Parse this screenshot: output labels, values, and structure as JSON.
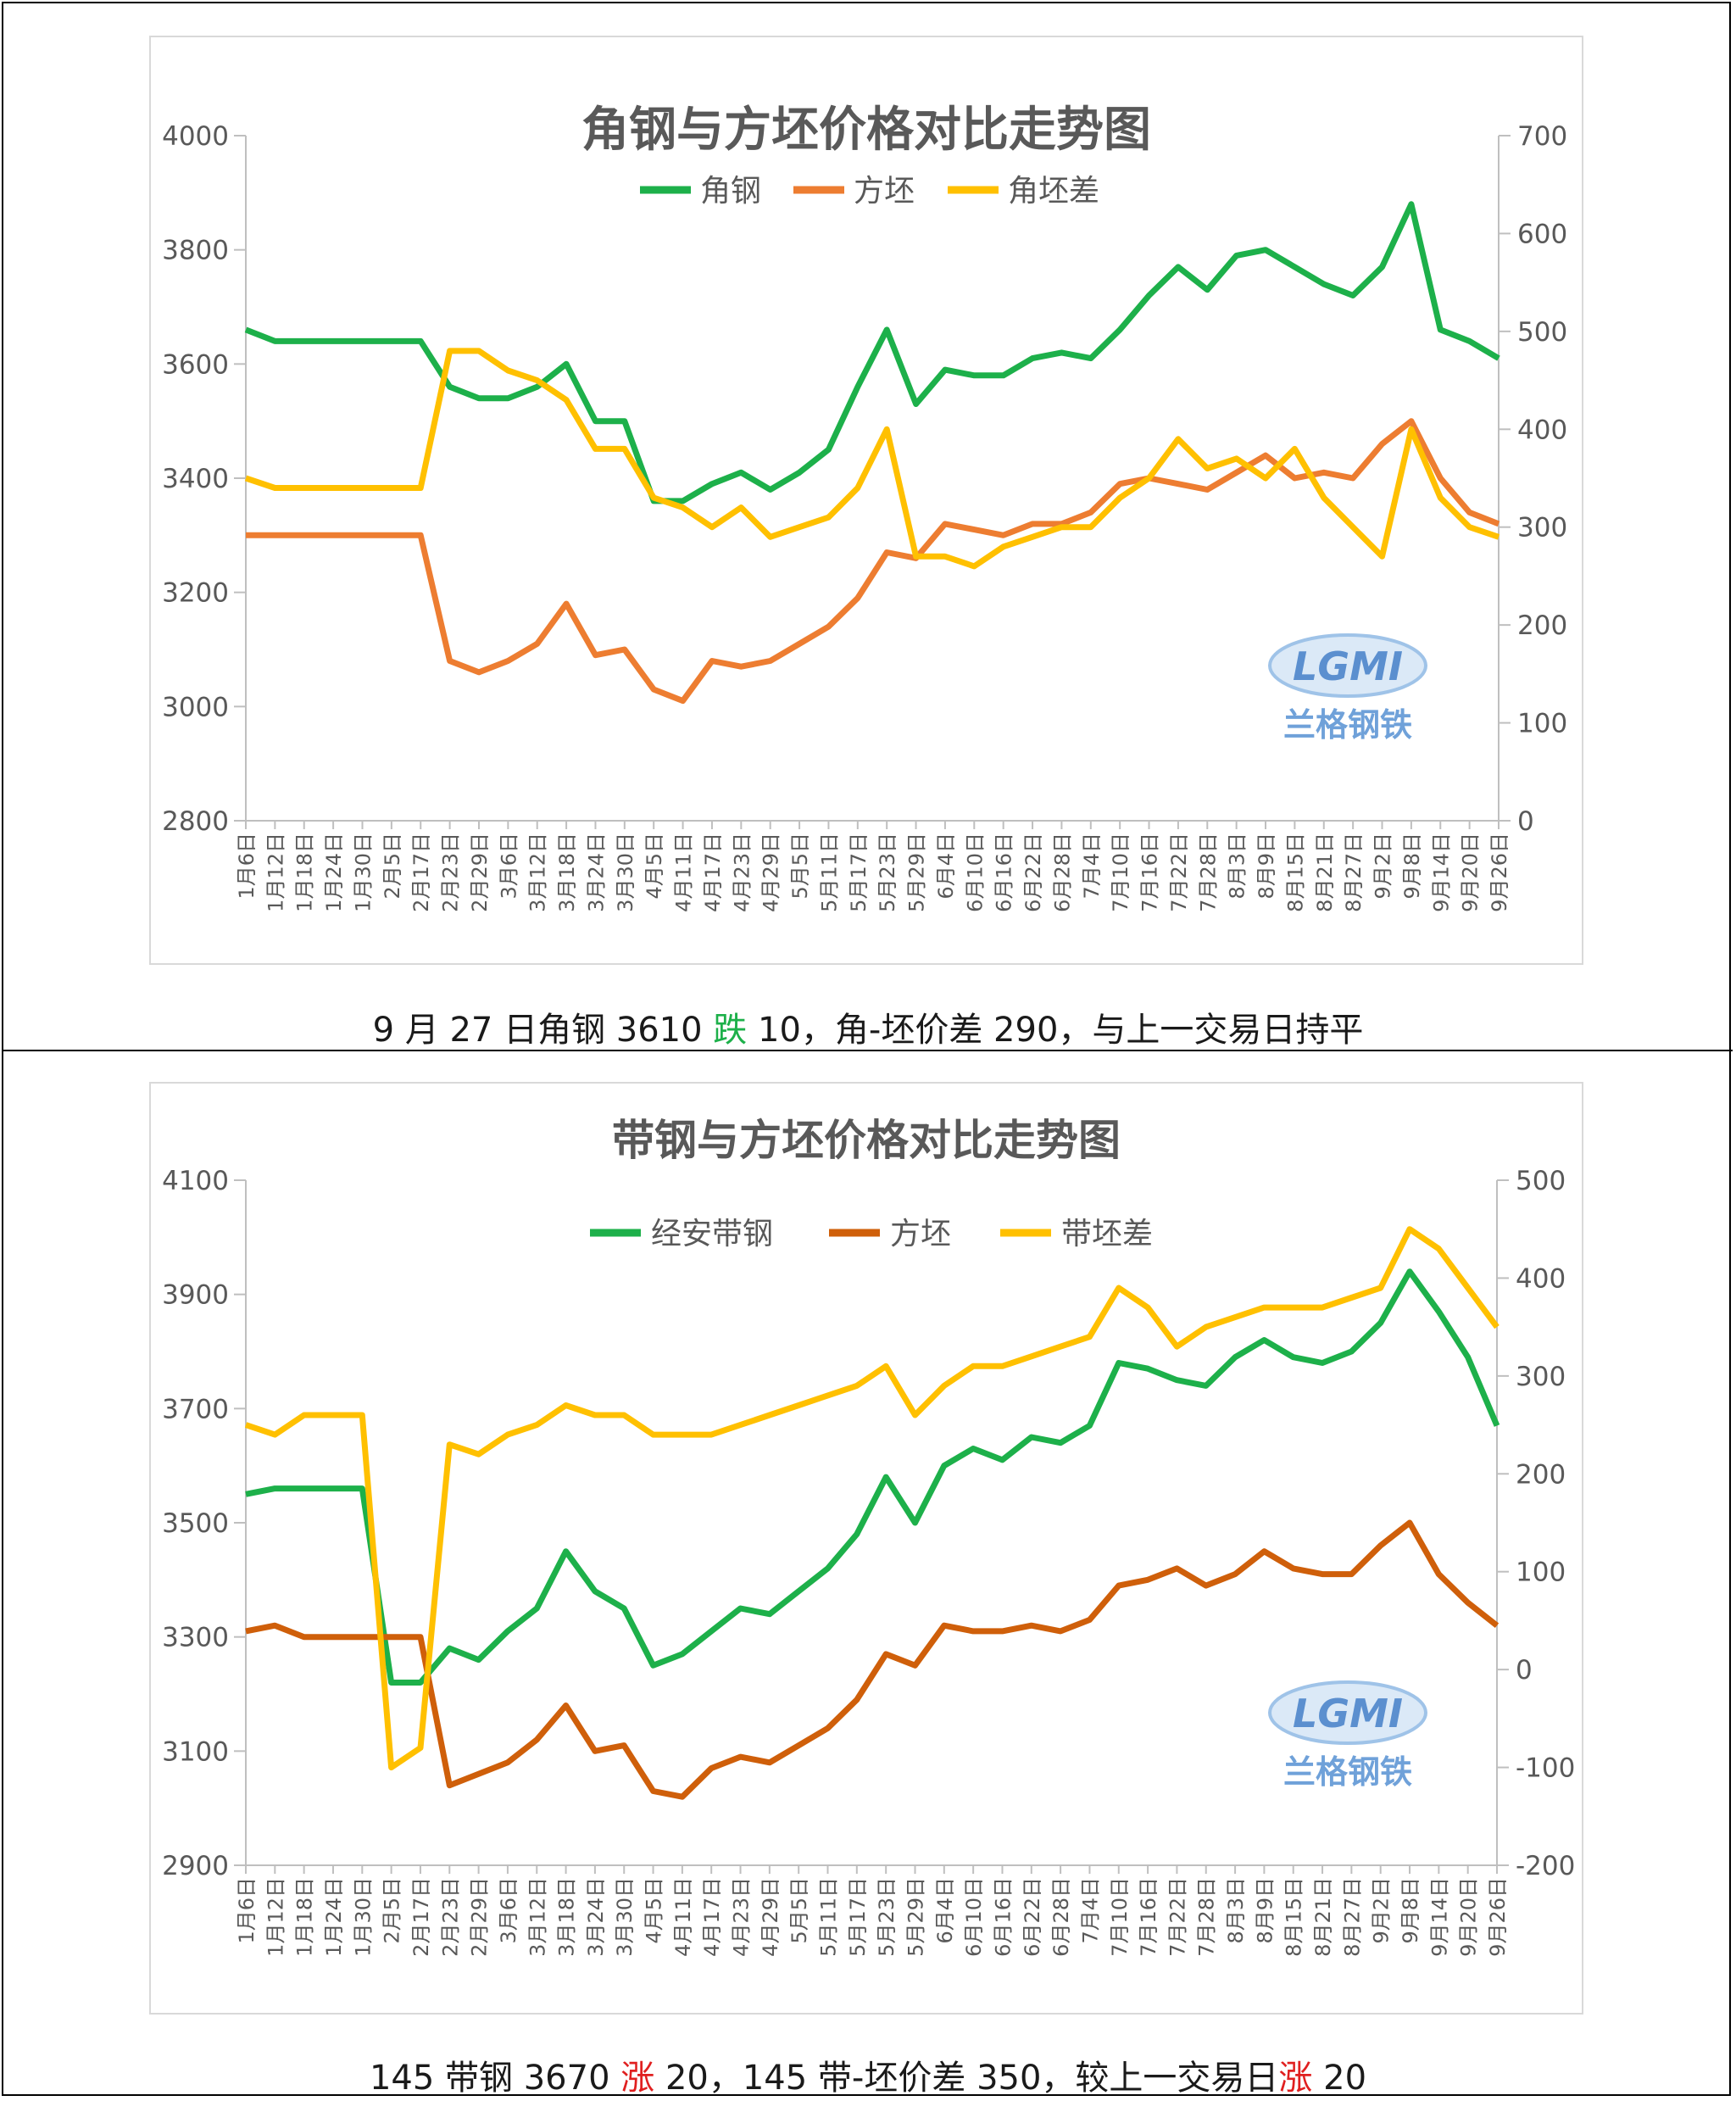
{
  "x_labels": [
    "1月6日",
    "1月12日",
    "1月18日",
    "1月24日",
    "1月30日",
    "2月5日",
    "2月17日",
    "2月23日",
    "2月29日",
    "3月6日",
    "3月12日",
    "3月18日",
    "3月24日",
    "3月30日",
    "4月5日",
    "4月11日",
    "4月17日",
    "4月23日",
    "4月29日",
    "5月5日",
    "5月11日",
    "5月17日",
    "5月23日",
    "5月29日",
    "6月4日",
    "6月10日",
    "6月16日",
    "6月22日",
    "6月28日",
    "7月4日",
    "7月10日",
    "7月16日",
    "7月22日",
    "7月28日",
    "8月3日",
    "8月9日",
    "8月15日",
    "8月21日",
    "8月27日",
    "9月2日",
    "9月8日",
    "9月14日",
    "9月20日",
    "9月26日"
  ],
  "charts": [
    {
      "title": "角钢与方坯价格对比走势图",
      "legend": [
        "角钢",
        "方坯",
        "角坯差"
      ],
      "colors": [
        "#1db04a",
        "#ed7d31",
        "#ffc000"
      ],
      "left_axis": {
        "min": 2800,
        "max": 4000,
        "step": 200,
        "ticks": [
          "4000",
          "3800",
          "3600",
          "3400",
          "3200",
          "3000",
          "2800"
        ]
      },
      "right_axis": {
        "min": 0,
        "max": 700,
        "step": 100,
        "ticks": [
          "700",
          "600",
          "500",
          "400",
          "300",
          "200",
          "100",
          "0"
        ]
      },
      "caption": {
        "prefix": "9 月 27 日角钢 3610 ",
        "change_word": "跌",
        "change_color": "#1db04a",
        "suffix": " 10，角-坯价差 290，与上一交易日持平"
      },
      "logo": {
        "text": "LGMI",
        "subtitle": "兰格钢铁"
      }
    },
    {
      "title": "带钢与方坯价格对比走势图",
      "legend": [
        "经安带钢",
        "方坯",
        "带坯差"
      ],
      "colors": [
        "#1db04a",
        "#cf5f0a",
        "#ffc000"
      ],
      "left_axis": {
        "min": 2900,
        "max": 4100,
        "step": 200,
        "ticks": [
          "4100",
          "3900",
          "3700",
          "3500",
          "3300",
          "3100",
          "2900"
        ]
      },
      "right_axis": {
        "min": -200,
        "max": 500,
        "step": 100,
        "ticks": [
          "500",
          "400",
          "300",
          "200",
          "100",
          "0",
          "-100",
          "-200"
        ]
      },
      "caption": {
        "prefix": "145 带钢 3670 ",
        "change_word": "涨",
        "change_color": "#e02020",
        "suffix": " 20，145 带-坯价差 350，较上一交易日",
        "suffix2": " 20"
      },
      "logo": {
        "text": "LGMI",
        "subtitle": "兰格钢铁"
      }
    }
  ],
  "chart_data": [
    {
      "type": "line",
      "title": "角钢与方坯价格对比走势图",
      "x": [
        "1月6日",
        "1月12日",
        "1月18日",
        "1月24日",
        "1月30日",
        "2月5日",
        "2月17日",
        "2月23日",
        "2月29日",
        "3月6日",
        "3月12日",
        "3月18日",
        "3月24日",
        "3月30日",
        "4月5日",
        "4月11日",
        "4月17日",
        "4月23日",
        "4月29日",
        "5月5日",
        "5月11日",
        "5月17日",
        "5月23日",
        "5月29日",
        "6月4日",
        "6月10日",
        "6月16日",
        "6月22日",
        "6月28日",
        "7月4日",
        "7月10日",
        "7月16日",
        "7月22日",
        "7月28日",
        "8月3日",
        "8月9日",
        "8月15日",
        "8月21日",
        "8月27日",
        "9月2日",
        "9月8日",
        "9月14日",
        "9月20日",
        "9月26日"
      ],
      "ylim": [
        2800,
        4000
      ],
      "y2lim": [
        0,
        700
      ],
      "series": [
        {
          "name": "角钢",
          "axis": "left",
          "values": [
            3660,
            3640,
            3640,
            3640,
            3640,
            3640,
            3640,
            3560,
            3540,
            3540,
            3560,
            3600,
            3500,
            3500,
            3360,
            3360,
            3390,
            3410,
            3380,
            3410,
            3450,
            3560,
            3660,
            3530,
            3590,
            3580,
            3580,
            3610,
            3620,
            3610,
            3660,
            3720,
            3770,
            3730,
            3790,
            3800,
            3770,
            3740,
            3720,
            3770,
            3880,
            3660,
            3640,
            3610
          ]
        },
        {
          "name": "方坯",
          "axis": "left",
          "values": [
            3300,
            3300,
            3300,
            3300,
            3300,
            3300,
            3300,
            3080,
            3060,
            3080,
            3110,
            3180,
            3090,
            3100,
            3030,
            3010,
            3080,
            3070,
            3080,
            3110,
            3140,
            3190,
            3270,
            3260,
            3320,
            3310,
            3300,
            3320,
            3320,
            3340,
            3390,
            3400,
            3390,
            3380,
            3410,
            3440,
            3400,
            3410,
            3400,
            3460,
            3500,
            3400,
            3340,
            3320
          ]
        },
        {
          "name": "角坯差",
          "axis": "right",
          "values": [
            350,
            340,
            340,
            340,
            340,
            340,
            340,
            480,
            480,
            460,
            450,
            430,
            380,
            380,
            330,
            320,
            300,
            320,
            290,
            300,
            310,
            340,
            400,
            270,
            270,
            260,
            280,
            290,
            300,
            300,
            330,
            350,
            390,
            360,
            370,
            350,
            380,
            330,
            300,
            270,
            400,
            330,
            300,
            290
          ]
        }
      ]
    },
    {
      "type": "line",
      "title": "带钢与方坯价格对比走势图",
      "x": [
        "1月6日",
        "1月12日",
        "1月18日",
        "1月24日",
        "1月30日",
        "2月5日",
        "2月17日",
        "2月23日",
        "2月29日",
        "3月6日",
        "3月12日",
        "3月18日",
        "3月24日",
        "3月30日",
        "4月5日",
        "4月11日",
        "4月17日",
        "4月23日",
        "4月29日",
        "5月5日",
        "5月11日",
        "5月17日",
        "5月23日",
        "5月29日",
        "6月4日",
        "6月10日",
        "6月16日",
        "6月22日",
        "6月28日",
        "7月4日",
        "7月10日",
        "7月16日",
        "7月22日",
        "7月28日",
        "8月3日",
        "8月9日",
        "8月15日",
        "8月21日",
        "8月27日",
        "9月2日",
        "9月8日",
        "9月14日",
        "9月20日",
        "9月26日"
      ],
      "ylim": [
        2900,
        4100
      ],
      "y2lim": [
        -200,
        500
      ],
      "series": [
        {
          "name": "经安带钢",
          "axis": "left",
          "values": [
            3550,
            3560,
            3560,
            3560,
            3560,
            3220,
            3220,
            3280,
            3260,
            3310,
            3350,
            3450,
            3380,
            3350,
            3250,
            3270,
            3310,
            3350,
            3340,
            3380,
            3420,
            3480,
            3580,
            3500,
            3600,
            3630,
            3610,
            3650,
            3640,
            3670,
            3780,
            3770,
            3750,
            3740,
            3790,
            3820,
            3790,
            3780,
            3800,
            3850,
            3940,
            3870,
            3790,
            3670
          ]
        },
        {
          "name": "方坯",
          "axis": "left",
          "values": [
            3310,
            3320,
            3300,
            3300,
            3300,
            3300,
            3300,
            3040,
            3060,
            3080,
            3120,
            3180,
            3100,
            3110,
            3030,
            3020,
            3070,
            3090,
            3080,
            3110,
            3140,
            3190,
            3270,
            3250,
            3320,
            3310,
            3310,
            3320,
            3310,
            3330,
            3390,
            3400,
            3420,
            3390,
            3410,
            3450,
            3420,
            3410,
            3410,
            3460,
            3500,
            3410,
            3360,
            3320
          ]
        },
        {
          "name": "带坯差",
          "axis": "right",
          "values": [
            250,
            240,
            260,
            260,
            260,
            -100,
            -80,
            230,
            220,
            240,
            250,
            270,
            260,
            260,
            240,
            240,
            240,
            250,
            260,
            270,
            280,
            290,
            310,
            260,
            290,
            310,
            310,
            320,
            330,
            340,
            390,
            370,
            330,
            350,
            360,
            370,
            370,
            370,
            380,
            390,
            450,
            430,
            390,
            350
          ]
        }
      ]
    }
  ]
}
